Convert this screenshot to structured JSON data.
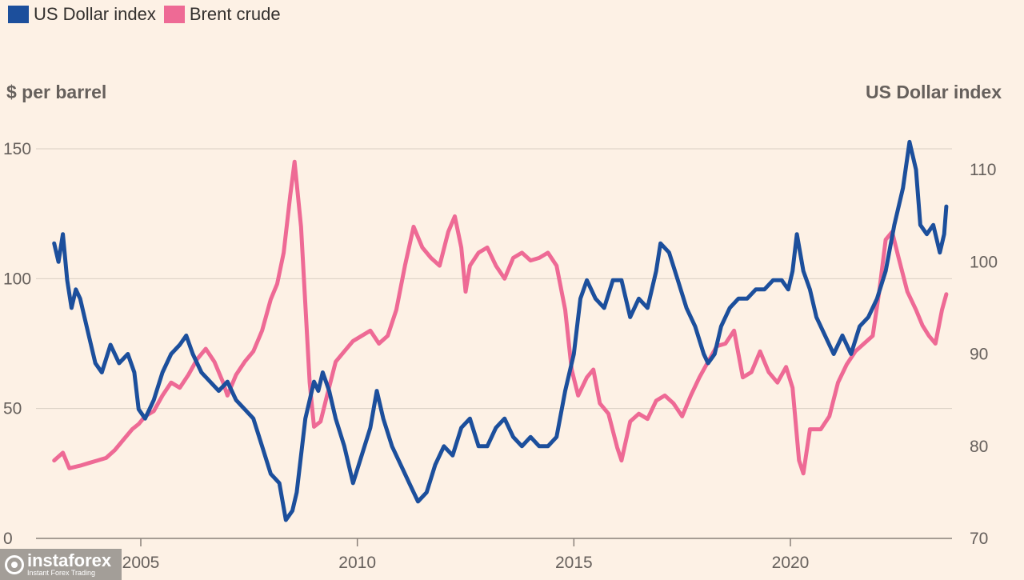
{
  "chart_data": {
    "type": "line",
    "title": "",
    "legend": [
      {
        "name": "US Dollar index",
        "color": "#1c4f9c"
      },
      {
        "name": "Brent crude",
        "color": "#ee6a95"
      }
    ],
    "left_axis": {
      "label": "$ per barrel",
      "ticks": [
        "0",
        "50",
        "100",
        "150"
      ],
      "range": [
        0,
        150
      ]
    },
    "right_axis": {
      "label": "US Dollar index",
      "ticks": [
        "70",
        "80",
        "90",
        "100",
        "110"
      ],
      "range": [
        70,
        110
      ]
    },
    "x_axis": {
      "ticks": [
        "2005",
        "2010",
        "2015",
        "2020"
      ],
      "range": [
        2003.0,
        2023.6
      ]
    },
    "grid": true,
    "series": [
      {
        "name": "Brent crude",
        "axis": "left",
        "color": "#ee6a95",
        "points": [
          [
            2003.0,
            30
          ],
          [
            2003.2,
            33
          ],
          [
            2003.35,
            27
          ],
          [
            2003.6,
            28
          ],
          [
            2003.8,
            29
          ],
          [
            2004.0,
            30
          ],
          [
            2004.2,
            31
          ],
          [
            2004.4,
            34
          ],
          [
            2004.6,
            38
          ],
          [
            2004.8,
            42
          ],
          [
            2004.95,
            44
          ],
          [
            2005.1,
            47
          ],
          [
            2005.3,
            49
          ],
          [
            2005.5,
            55
          ],
          [
            2005.7,
            60
          ],
          [
            2005.9,
            58
          ],
          [
            2006.1,
            63
          ],
          [
            2006.3,
            69
          ],
          [
            2006.5,
            73
          ],
          [
            2006.7,
            68
          ],
          [
            2006.9,
            60
          ],
          [
            2007.0,
            55
          ],
          [
            2007.2,
            63
          ],
          [
            2007.4,
            68
          ],
          [
            2007.6,
            72
          ],
          [
            2007.8,
            80
          ],
          [
            2008.0,
            92
          ],
          [
            2008.15,
            98
          ],
          [
            2008.3,
            110
          ],
          [
            2008.45,
            132
          ],
          [
            2008.55,
            145
          ],
          [
            2008.7,
            120
          ],
          [
            2008.8,
            90
          ],
          [
            2008.9,
            60
          ],
          [
            2009.0,
            43
          ],
          [
            2009.15,
            45
          ],
          [
            2009.3,
            55
          ],
          [
            2009.5,
            68
          ],
          [
            2009.7,
            72
          ],
          [
            2009.9,
            76
          ],
          [
            2010.1,
            78
          ],
          [
            2010.3,
            80
          ],
          [
            2010.5,
            75
          ],
          [
            2010.7,
            78
          ],
          [
            2010.9,
            88
          ],
          [
            2011.1,
            105
          ],
          [
            2011.3,
            120
          ],
          [
            2011.5,
            112
          ],
          [
            2011.7,
            108
          ],
          [
            2011.9,
            105
          ],
          [
            2012.1,
            118
          ],
          [
            2012.25,
            124
          ],
          [
            2012.4,
            112
          ],
          [
            2012.5,
            95
          ],
          [
            2012.6,
            105
          ],
          [
            2012.8,
            110
          ],
          [
            2013.0,
            112
          ],
          [
            2013.2,
            105
          ],
          [
            2013.4,
            100
          ],
          [
            2013.6,
            108
          ],
          [
            2013.8,
            110
          ],
          [
            2014.0,
            107
          ],
          [
            2014.2,
            108
          ],
          [
            2014.4,
            110
          ],
          [
            2014.6,
            105
          ],
          [
            2014.8,
            88
          ],
          [
            2014.95,
            65
          ],
          [
            2015.1,
            55
          ],
          [
            2015.3,
            62
          ],
          [
            2015.45,
            65
          ],
          [
            2015.6,
            52
          ],
          [
            2015.8,
            48
          ],
          [
            2016.0,
            35
          ],
          [
            2016.1,
            30
          ],
          [
            2016.3,
            45
          ],
          [
            2016.5,
            48
          ],
          [
            2016.7,
            46
          ],
          [
            2016.9,
            53
          ],
          [
            2017.1,
            55
          ],
          [
            2017.3,
            52
          ],
          [
            2017.5,
            47
          ],
          [
            2017.7,
            55
          ],
          [
            2017.9,
            62
          ],
          [
            2018.1,
            68
          ],
          [
            2018.3,
            74
          ],
          [
            2018.5,
            75
          ],
          [
            2018.7,
            80
          ],
          [
            2018.9,
            62
          ],
          [
            2019.1,
            64
          ],
          [
            2019.3,
            72
          ],
          [
            2019.5,
            64
          ],
          [
            2019.7,
            60
          ],
          [
            2019.9,
            66
          ],
          [
            2020.05,
            58
          ],
          [
            2020.2,
            30
          ],
          [
            2020.3,
            25
          ],
          [
            2020.45,
            42
          ],
          [
            2020.7,
            42
          ],
          [
            2020.9,
            47
          ],
          [
            2021.1,
            60
          ],
          [
            2021.3,
            67
          ],
          [
            2021.5,
            72
          ],
          [
            2021.7,
            75
          ],
          [
            2021.9,
            78
          ],
          [
            2022.05,
            95
          ],
          [
            2022.2,
            115
          ],
          [
            2022.35,
            118
          ],
          [
            2022.5,
            108
          ],
          [
            2022.7,
            95
          ],
          [
            2022.9,
            88
          ],
          [
            2023.05,
            82
          ],
          [
            2023.2,
            78
          ],
          [
            2023.35,
            75
          ],
          [
            2023.5,
            88
          ],
          [
            2023.6,
            94
          ]
        ]
      },
      {
        "name": "US Dollar index",
        "axis": "right",
        "color": "#1c4f9c",
        "points": [
          [
            2003.0,
            102
          ],
          [
            2003.1,
            100
          ],
          [
            2003.2,
            103
          ],
          [
            2003.3,
            98
          ],
          [
            2003.4,
            95
          ],
          [
            2003.5,
            97
          ],
          [
            2003.6,
            96
          ],
          [
            2003.7,
            94
          ],
          [
            2003.8,
            92
          ],
          [
            2003.95,
            89
          ],
          [
            2004.1,
            88
          ],
          [
            2004.3,
            91
          ],
          [
            2004.5,
            89
          ],
          [
            2004.7,
            90
          ],
          [
            2004.85,
            88
          ],
          [
            2004.95,
            84
          ],
          [
            2005.1,
            83
          ],
          [
            2005.3,
            85
          ],
          [
            2005.5,
            88
          ],
          [
            2005.7,
            90
          ],
          [
            2005.9,
            91
          ],
          [
            2006.05,
            92
          ],
          [
            2006.2,
            90
          ],
          [
            2006.4,
            88
          ],
          [
            2006.6,
            87
          ],
          [
            2006.8,
            86
          ],
          [
            2007.0,
            87
          ],
          [
            2007.2,
            85
          ],
          [
            2007.4,
            84
          ],
          [
            2007.6,
            83
          ],
          [
            2007.8,
            80
          ],
          [
            2008.0,
            77
          ],
          [
            2008.2,
            76
          ],
          [
            2008.35,
            72
          ],
          [
            2008.5,
            73
          ],
          [
            2008.6,
            75
          ],
          [
            2008.8,
            83
          ],
          [
            2009.0,
            87
          ],
          [
            2009.1,
            86
          ],
          [
            2009.2,
            88
          ],
          [
            2009.35,
            86
          ],
          [
            2009.5,
            83
          ],
          [
            2009.7,
            80
          ],
          [
            2009.9,
            76
          ],
          [
            2010.1,
            79
          ],
          [
            2010.3,
            82
          ],
          [
            2010.45,
            86
          ],
          [
            2010.6,
            83
          ],
          [
            2010.8,
            80
          ],
          [
            2011.0,
            78
          ],
          [
            2011.2,
            76
          ],
          [
            2011.4,
            74
          ],
          [
            2011.6,
            75
          ],
          [
            2011.8,
            78
          ],
          [
            2012.0,
            80
          ],
          [
            2012.2,
            79
          ],
          [
            2012.4,
            82
          ],
          [
            2012.6,
            83
          ],
          [
            2012.8,
            80
          ],
          [
            2013.0,
            80
          ],
          [
            2013.2,
            82
          ],
          [
            2013.4,
            83
          ],
          [
            2013.6,
            81
          ],
          [
            2013.8,
            80
          ],
          [
            2014.0,
            81
          ],
          [
            2014.2,
            80
          ],
          [
            2014.4,
            80
          ],
          [
            2014.6,
            81
          ],
          [
            2014.8,
            86
          ],
          [
            2015.0,
            90
          ],
          [
            2015.15,
            96
          ],
          [
            2015.3,
            98
          ],
          [
            2015.5,
            96
          ],
          [
            2015.7,
            95
          ],
          [
            2015.9,
            98
          ],
          [
            2016.1,
            98
          ],
          [
            2016.3,
            94
          ],
          [
            2016.5,
            96
          ],
          [
            2016.7,
            95
          ],
          [
            2016.9,
            99
          ],
          [
            2017.0,
            102
          ],
          [
            2017.2,
            101
          ],
          [
            2017.4,
            98
          ],
          [
            2017.6,
            95
          ],
          [
            2017.8,
            93
          ],
          [
            2018.0,
            90
          ],
          [
            2018.1,
            89
          ],
          [
            2018.25,
            90
          ],
          [
            2018.4,
            93
          ],
          [
            2018.6,
            95
          ],
          [
            2018.8,
            96
          ],
          [
            2019.0,
            96
          ],
          [
            2019.2,
            97
          ],
          [
            2019.4,
            97
          ],
          [
            2019.6,
            98
          ],
          [
            2019.8,
            98
          ],
          [
            2019.95,
            97
          ],
          [
            2020.05,
            99
          ],
          [
            2020.15,
            103
          ],
          [
            2020.3,
            99
          ],
          [
            2020.45,
            97
          ],
          [
            2020.6,
            94
          ],
          [
            2020.8,
            92
          ],
          [
            2021.0,
            90
          ],
          [
            2021.2,
            92
          ],
          [
            2021.4,
            90
          ],
          [
            2021.6,
            93
          ],
          [
            2021.8,
            94
          ],
          [
            2022.0,
            96
          ],
          [
            2022.2,
            99
          ],
          [
            2022.4,
            104
          ],
          [
            2022.6,
            108
          ],
          [
            2022.75,
            113
          ],
          [
            2022.9,
            110
          ],
          [
            2023.0,
            104
          ],
          [
            2023.15,
            103
          ],
          [
            2023.3,
            104
          ],
          [
            2023.45,
            101
          ],
          [
            2023.55,
            103
          ],
          [
            2023.6,
            106
          ]
        ]
      }
    ]
  },
  "watermark": {
    "brand": "instaforex",
    "tagline": "Instant Forex Trading"
  }
}
